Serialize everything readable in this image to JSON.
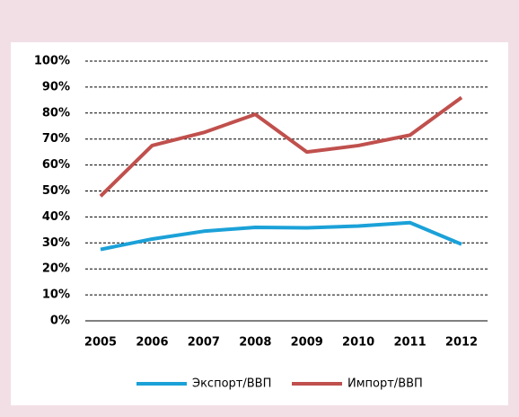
{
  "chart_data": {
    "type": "line",
    "categories": [
      "2005",
      "2006",
      "2007",
      "2008",
      "2009",
      "2010",
      "2011",
      "2012"
    ],
    "series": [
      {
        "name": "Экспорт/ВВП",
        "color": "#1ba1d8",
        "values": [
          27.5,
          31.5,
          34.5,
          36,
          35.8,
          36.5,
          37.8,
          29.5
        ]
      },
      {
        "name": "Импорт/ВВП",
        "color": "#c0504d",
        "values": [
          48,
          67.5,
          72.5,
          79.5,
          65,
          67.5,
          71.5,
          86
        ]
      }
    ],
    "ylim": [
      0,
      100
    ],
    "yticks": [
      {
        "value": 0,
        "label": "0%"
      },
      {
        "value": 10,
        "label": "10%"
      },
      {
        "value": 20,
        "label": "20%"
      },
      {
        "value": 30,
        "label": "30%"
      },
      {
        "value": 40,
        "label": "40%"
      },
      {
        "value": 50,
        "label": "50%"
      },
      {
        "value": 60,
        "label": "60%"
      },
      {
        "value": 70,
        "label": "70%"
      },
      {
        "value": 80,
        "label": "80%"
      },
      {
        "value": 90,
        "label": "90%"
      },
      {
        "value": 100,
        "label": "100%"
      }
    ],
    "grid": true,
    "legend": "bottom"
  }
}
